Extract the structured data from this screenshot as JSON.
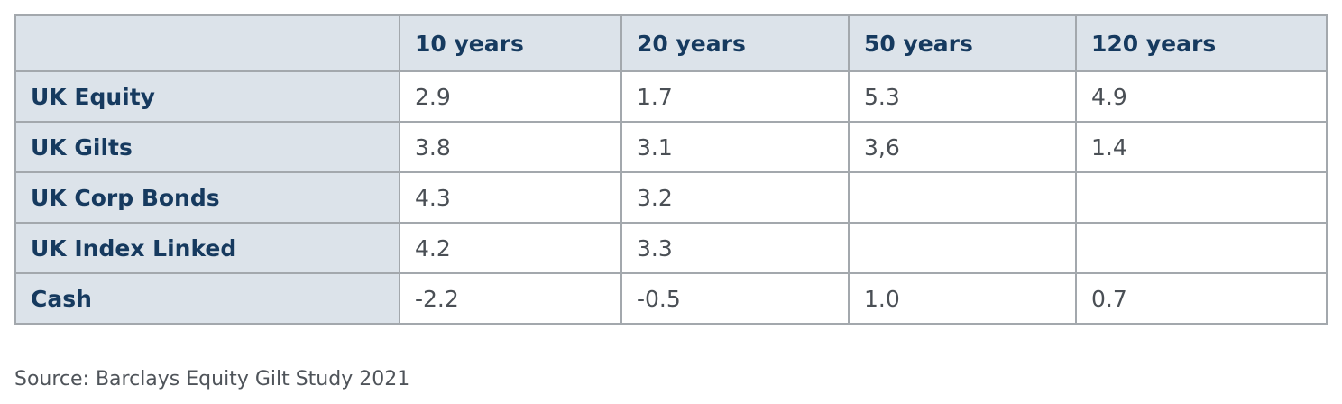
{
  "table": {
    "columns": [
      "",
      "10 years",
      "20 years",
      "50 years",
      "120 years"
    ],
    "rows": [
      {
        "label": "UK Equity",
        "values": [
          "2.9",
          "1.7",
          "5.3",
          "4.9"
        ]
      },
      {
        "label": "UK Gilts",
        "values": [
          "3.8",
          "3.1",
          "3,6",
          "1.4"
        ]
      },
      {
        "label": "UK Corp Bonds",
        "values": [
          "4.3",
          "3.2",
          "",
          ""
        ]
      },
      {
        "label": "UK Index Linked",
        "values": [
          "4.2",
          "3.3",
          "",
          ""
        ]
      },
      {
        "label": "Cash",
        "values": [
          "-2.2",
          "-0.5",
          "1.0",
          "0.7"
        ]
      }
    ]
  },
  "source": "Source: Barclays Equity Gilt Study 2021",
  "colors": {
    "header_bg": "#dce3ea",
    "header_text": "#163a5f",
    "border": "#a3a8ad",
    "cell_text": "#4a4f55"
  }
}
